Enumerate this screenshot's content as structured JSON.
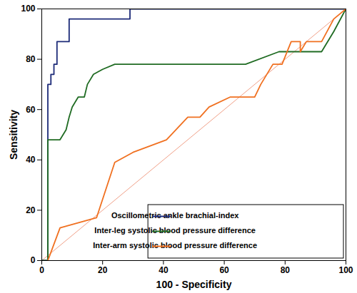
{
  "chart_data": {
    "type": "line",
    "xlabel": "100 - Specificity",
    "ylabel": "Sensitivity",
    "xlim": [
      0,
      100
    ],
    "ylim": [
      0,
      100
    ],
    "xticks": [
      0,
      20,
      40,
      60,
      80,
      100
    ],
    "yticks": [
      0,
      20,
      40,
      60,
      80,
      100
    ],
    "grid": false,
    "legend": "bottom-right",
    "series": [
      {
        "name": "Oscillometric ankle brachial-index",
        "color": "#1c2a78",
        "x": [
          0,
          2,
          2,
          3,
          3,
          4,
          4,
          5,
          5,
          9,
          9,
          29,
          29,
          100
        ],
        "values": [
          0,
          0,
          70,
          70,
          74,
          74,
          78,
          78,
          87,
          87,
          96,
          96,
          100,
          100
        ]
      },
      {
        "name": "Inter-leg systolic blood pressure difference",
        "color": "#1f6b22",
        "x": [
          0,
          2,
          2,
          6,
          8,
          9,
          10,
          12,
          14,
          15,
          17,
          20,
          24,
          67,
          78,
          92,
          96,
          100
        ],
        "values": [
          0,
          0,
          48,
          48,
          52,
          57,
          61,
          65,
          65,
          70,
          74,
          76,
          78,
          78,
          83,
          83,
          91,
          100
        ]
      },
      {
        "name": "Inter-arm systolic blood pressure difference",
        "color": "#f07020",
        "x": [
          2,
          6,
          18,
          24,
          30,
          41,
          48,
          52,
          55,
          62,
          70,
          72,
          76,
          79,
          82,
          85,
          85,
          87,
          92,
          96,
          100
        ],
        "values": [
          0,
          13,
          17,
          39,
          43,
          48,
          57,
          57,
          61,
          65,
          65,
          70,
          78,
          78,
          87,
          87,
          83,
          87,
          87,
          96,
          100
        ]
      }
    ],
    "reference_line": {
      "color": "#f0a088",
      "x": [
        0,
        100
      ],
      "values": [
        0,
        100
      ]
    }
  }
}
